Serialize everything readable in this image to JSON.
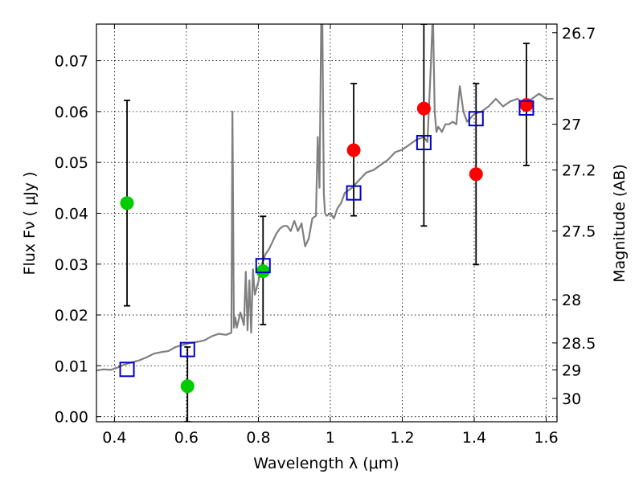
{
  "chart_data": {
    "type": "scatter",
    "xlabel": "Wavelength  λ (μm)",
    "ylabel": "Flux  Fν  ( μJy )",
    "y2label": "Magnitude (AB)",
    "xlim": [
      0.35,
      1.63
    ],
    "ylim": [
      -0.001,
      0.0772
    ],
    "grid": true,
    "x_ticks": [
      0.4,
      0.6,
      0.8,
      1.0,
      1.2,
      1.4,
      1.6
    ],
    "x_tick_labels": [
      "0.4",
      "0.6",
      "0.8",
      "1",
      "1.2",
      "1.4",
      "1.6"
    ],
    "y_ticks": [
      0.0,
      0.01,
      0.02,
      0.03,
      0.04,
      0.05,
      0.06,
      0.07
    ],
    "y_tick_labels": [
      "0.00",
      "0.01",
      "0.02",
      "0.03",
      "0.04",
      "0.05",
      "0.06",
      "0.07"
    ],
    "y2_ticks": [
      {
        "label": "26.7",
        "flux": 0.0755
      },
      {
        "label": "27",
        "flux": 0.0575
      },
      {
        "label": "27.2",
        "flux": 0.0485
      },
      {
        "label": "27.5",
        "flux": 0.0365
      },
      {
        "label": "28",
        "flux": 0.023
      },
      {
        "label": "28.5",
        "flux": 0.0145
      },
      {
        "label": "29",
        "flux": 0.0092
      },
      {
        "label": "30",
        "flux": 0.0036
      }
    ],
    "series": [
      {
        "type": "line",
        "color": "#7f7f7f",
        "x": [
          0.35,
          0.37,
          0.39,
          0.41,
          0.43,
          0.45,
          0.47,
          0.49,
          0.51,
          0.53,
          0.55,
          0.57,
          0.59,
          0.61,
          0.63,
          0.65,
          0.67,
          0.69,
          0.71,
          0.725,
          0.728,
          0.732,
          0.736,
          0.74,
          0.75,
          0.76,
          0.765,
          0.77,
          0.775,
          0.78,
          0.785,
          0.79,
          0.8,
          0.81,
          0.82,
          0.83,
          0.84,
          0.85,
          0.86,
          0.87,
          0.88,
          0.89,
          0.9,
          0.91,
          0.92,
          0.93,
          0.94,
          0.95,
          0.96,
          0.965,
          0.97,
          0.975,
          0.978,
          0.982,
          0.985,
          0.99,
          1.0,
          1.01,
          1.02,
          1.03,
          1.04,
          1.06,
          1.08,
          1.1,
          1.12,
          1.14,
          1.16,
          1.18,
          1.2,
          1.22,
          1.24,
          1.26,
          1.27,
          1.28,
          1.285,
          1.29,
          1.295,
          1.3,
          1.31,
          1.32,
          1.33,
          1.34,
          1.35,
          1.36,
          1.37,
          1.38,
          1.4,
          1.42,
          1.44,
          1.46,
          1.48,
          1.5,
          1.52,
          1.54,
          1.56,
          1.58,
          1.6,
          1.62
        ],
        "y": [
          0.0091,
          0.0093,
          0.0092,
          0.0097,
          0.0103,
          0.0107,
          0.0111,
          0.0117,
          0.0124,
          0.0127,
          0.0129,
          0.0137,
          0.0141,
          0.0145,
          0.0147,
          0.015,
          0.0158,
          0.0163,
          0.0161,
          0.0165,
          0.06,
          0.0175,
          0.0195,
          0.0175,
          0.0205,
          0.018,
          0.0285,
          0.017,
          0.0268,
          0.0165,
          0.029,
          0.024,
          0.0265,
          0.03,
          0.032,
          0.033,
          0.0345,
          0.036,
          0.037,
          0.0375,
          0.0375,
          0.0365,
          0.0385,
          0.0365,
          0.038,
          0.0335,
          0.035,
          0.039,
          0.0395,
          0.055,
          0.045,
          0.08,
          0.077,
          0.044,
          0.04,
          0.0395,
          0.04,
          0.039,
          0.041,
          0.042,
          0.044,
          0.045,
          0.0465,
          0.048,
          0.0485,
          0.0495,
          0.0505,
          0.052,
          0.0525,
          0.0535,
          0.0545,
          0.055,
          0.054,
          0.07,
          0.08,
          0.06,
          0.056,
          0.057,
          0.056,
          0.0575,
          0.0575,
          0.058,
          0.0575,
          0.065,
          0.06,
          0.058,
          0.0595,
          0.06,
          0.061,
          0.0625,
          0.061,
          0.062,
          0.0625,
          0.0615,
          0.0625,
          0.0635,
          0.0625,
          0.0625
        ]
      },
      {
        "type": "squares",
        "color": "#0000cc",
        "x": [
          0.435,
          0.603,
          0.813,
          1.065,
          1.26,
          1.405,
          1.545
        ],
        "y": [
          0.0093,
          0.0132,
          0.0297,
          0.044,
          0.0539,
          0.0586,
          0.0607
        ]
      },
      {
        "type": "points",
        "name": "green",
        "color": "#00cc00",
        "x": [
          0.435,
          0.603,
          0.813
        ],
        "y": [
          0.042,
          0.006,
          0.0286
        ]
      },
      {
        "type": "points",
        "name": "red",
        "color": "#ff0000",
        "x": [
          1.065,
          1.26,
          1.405,
          1.545
        ],
        "y": [
          0.0524,
          0.0606,
          0.0477,
          0.0613
        ]
      }
    ],
    "errorbars": {
      "color": "#000000",
      "items": [
        {
          "x": 0.435,
          "low": 0.0218,
          "high": 0.0622
        },
        {
          "x": 0.603,
          "low": -0.001,
          "high": 0.0137
        },
        {
          "x": 0.813,
          "low": 0.0181,
          "high": 0.0394
        },
        {
          "x": 1.065,
          "low": 0.0395,
          "high": 0.0655
        },
        {
          "x": 1.26,
          "low": 0.0375,
          "high": 0.0772
        },
        {
          "x": 1.405,
          "low": 0.0299,
          "high": 0.0655
        },
        {
          "x": 1.545,
          "low": 0.0494,
          "high": 0.0734
        }
      ]
    }
  }
}
